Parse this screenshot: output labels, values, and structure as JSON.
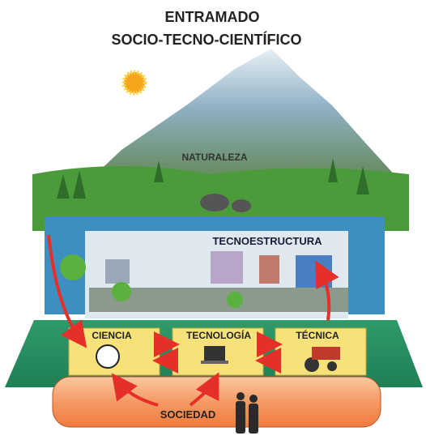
{
  "title": {
    "line1": "ENTRAMADO",
    "line2": "SOCIO-TECNO-CIENTÍFICO"
  },
  "labels": {
    "nature": "NATURALEZA",
    "technostructure": "TECNOESTRUCTURA",
    "science": "CIENCIA",
    "technology": "TECNOLOGÍA",
    "technique": "TÉCNICA",
    "society": "SOCIEDAD"
  }
}
